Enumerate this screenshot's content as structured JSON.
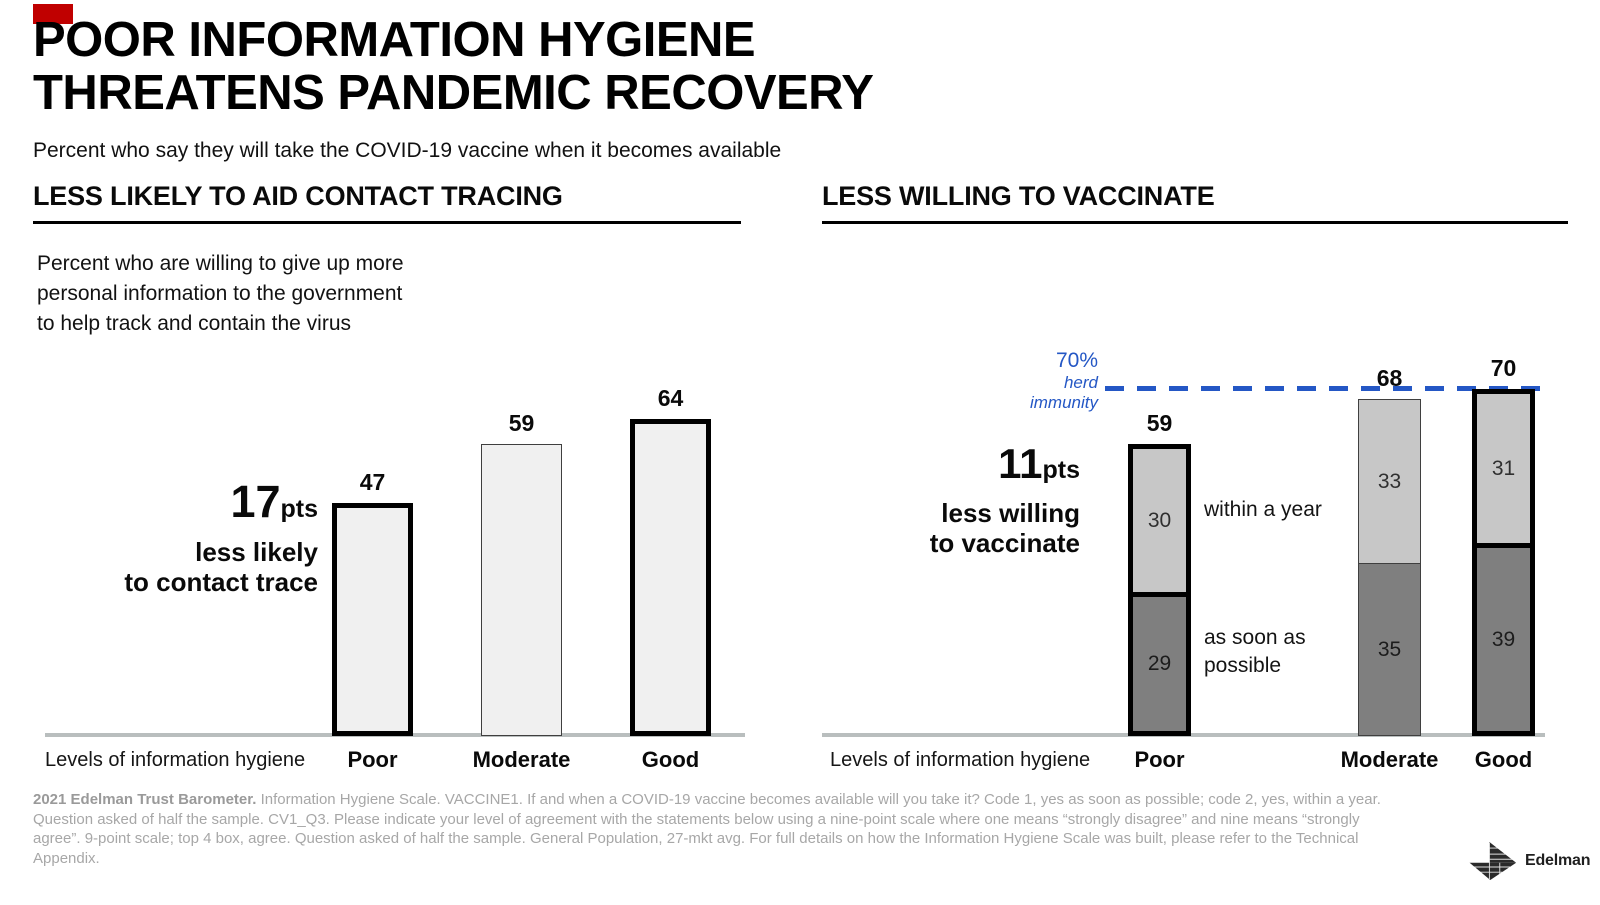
{
  "page": {
    "title_line1": "POOR INFORMATION HYGIENE",
    "title_line2": "THREATENS PANDEMIC RECOVERY",
    "subtitle": "Percent who say they will take the COVID-19 vaccine when it becomes available",
    "red_marker_color": "#C00000"
  },
  "left_panel": {
    "header": "LESS LIKELY TO AID CONTACT TRACING",
    "description_lines": [
      "Percent who are willing to give up more",
      "personal information to the government",
      "to help track and contain the virus"
    ],
    "annotation": {
      "big": "17",
      "unit": "pts",
      "line2": "less likely",
      "line3": "to contact trace"
    },
    "axis_label": "Levels of information hygiene"
  },
  "right_panel": {
    "header": "LESS WILLING TO VACCINATE",
    "annotation": {
      "big": "11",
      "unit": "pts",
      "line2": "less willing",
      "line3": "to vaccinate"
    },
    "threshold_label": {
      "pct": "70%",
      "line2": "herd",
      "line3": "immunity",
      "color": "#2457c5"
    },
    "side_labels": {
      "within": "within a year",
      "asap_line1": "as soon as",
      "asap_line2": "possible"
    },
    "axis_label": "Levels of information hygiene"
  },
  "chart_data": [
    {
      "type": "bar",
      "title": "LESS LIKELY TO AID CONTACT TRACING",
      "categories": [
        "Poor",
        "Moderate",
        "Good"
      ],
      "values": [
        47,
        59,
        64
      ],
      "xlabel": "Levels of information hygiene",
      "ylabel": "Percent willing to give up more personal information to the government",
      "ylim": [
        0,
        70
      ],
      "grid": false,
      "bar_color": "#f0f0f0",
      "emphasized_bars": [
        true,
        false,
        true
      ]
    },
    {
      "type": "bar",
      "stacked": true,
      "title": "LESS WILLING TO VACCINATE",
      "categories": [
        "Poor",
        "Moderate",
        "Good"
      ],
      "series": [
        {
          "name": "as soon as possible",
          "values": [
            29,
            35,
            39
          ],
          "color": "#7f7f7f",
          "label_color": "#1c1c1c"
        },
        {
          "name": "within a year",
          "values": [
            30,
            33,
            31
          ],
          "color": "#c7c7c7",
          "label_color": "#303030"
        }
      ],
      "totals": [
        59,
        68,
        70
      ],
      "reference_line": {
        "value": 70,
        "label": "70% herd immunity",
        "color": "#2457c5",
        "style": "dashed"
      },
      "xlabel": "Levels of information hygiene",
      "ylim": [
        0,
        75
      ],
      "grid": false,
      "emphasized_bars": [
        true,
        false,
        true
      ]
    }
  ],
  "footer": {
    "bold": "2021 Edelman Trust Barometer.",
    "text": " Information Hygiene Scale. VACCINE1. If and when a COVID-19 vaccine becomes available will you take it? Code 1, yes as soon as possible; code 2, yes, within a year. Question asked of half the sample. CV1_Q3. Please indicate your level of agreement with the statements below using a nine-point scale where one means “strongly disagree” and nine means “strongly agree”. 9-point scale; top 4 box, agree. Question asked of half the sample. General Population, 27-mkt avg. For full details on how the Information Hygiene Scale was built, please refer to the Technical Appendix."
  },
  "logo": {
    "text": "Edelman"
  }
}
